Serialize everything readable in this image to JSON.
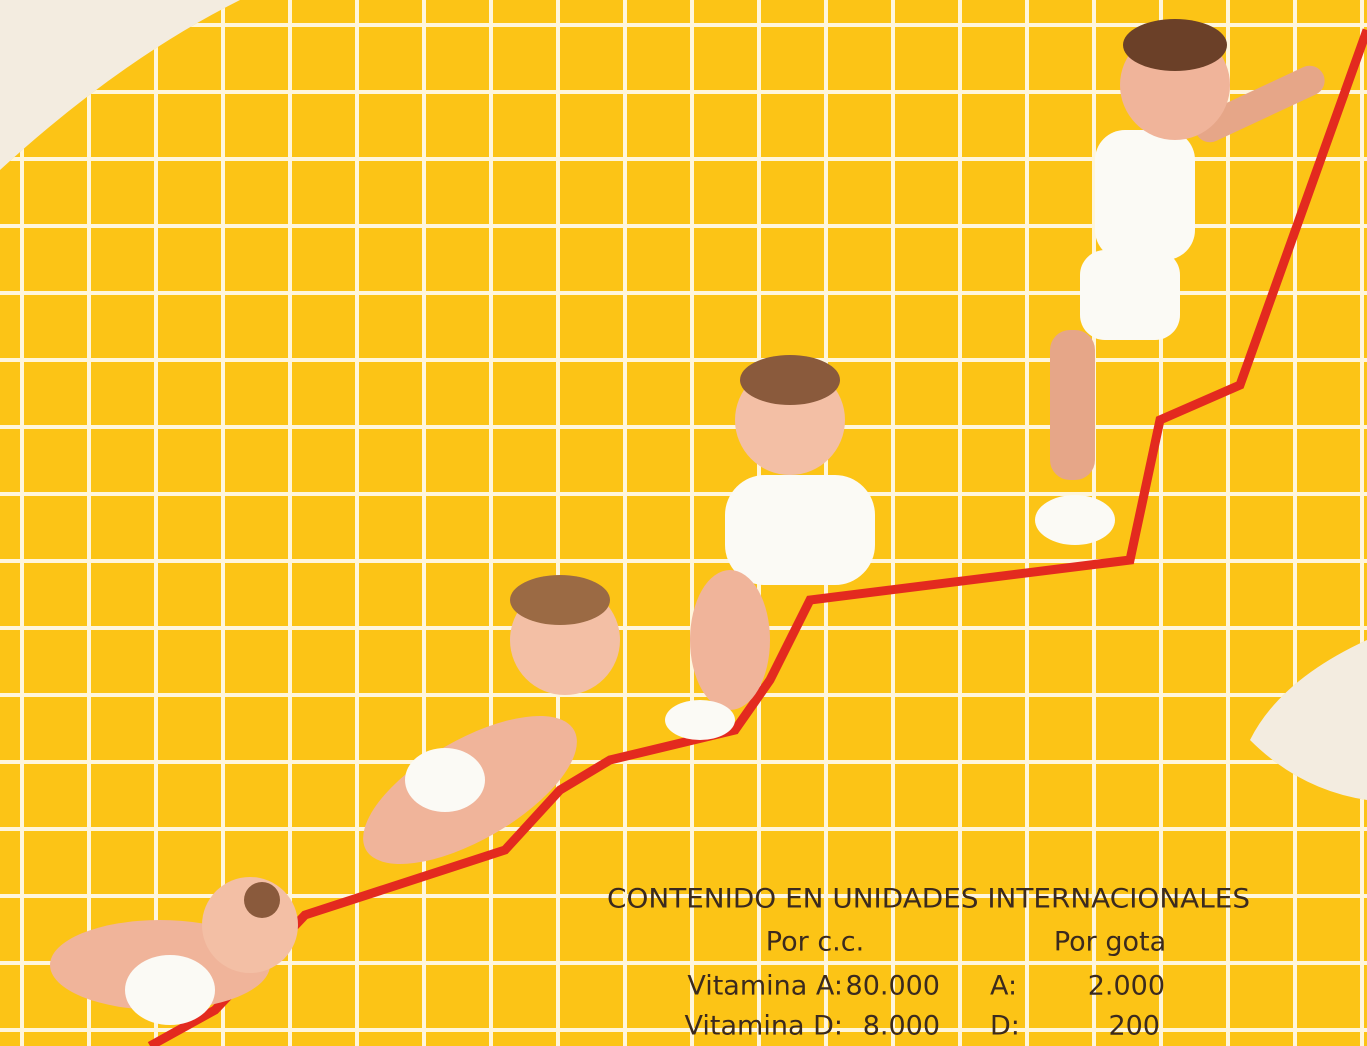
{
  "table": {
    "header": "CONTENIDO EN UNIDADES INTERNACIONALES",
    "columns": [
      "Por c.c.",
      "Por gota"
    ],
    "rows": [
      [
        "Vitamina A:",
        "80.000",
        "A:",
        "2.000"
      ],
      [
        "Vitamina D:",
        "8.000",
        "D:",
        "200"
      ]
    ]
  }
}
